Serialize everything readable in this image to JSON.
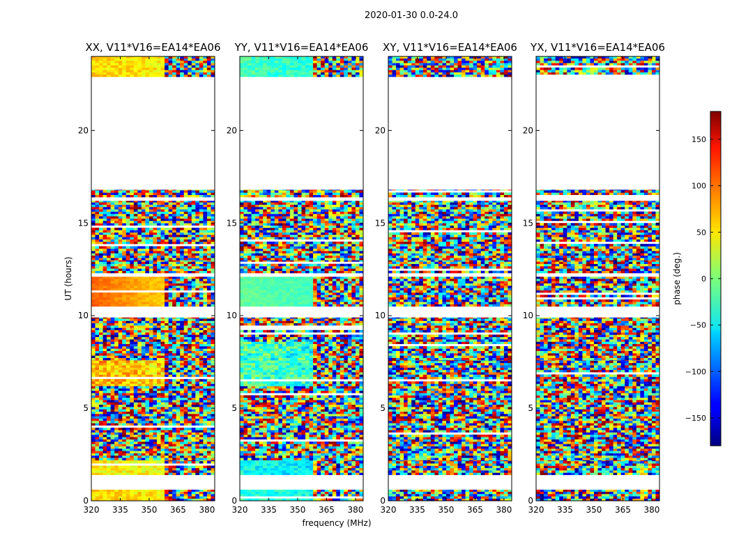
{
  "chart_data": {
    "type": "heatmap",
    "title": "2020-01-30 0.0-24.0",
    "xlabel": "frequency (MHz)",
    "ylabel": "UT (hours)",
    "xlim": [
      320,
      384
    ],
    "ylim": [
      0,
      24
    ],
    "xticks": [
      320,
      335,
      350,
      365,
      380
    ],
    "yticks": [
      0,
      5,
      10,
      15,
      20
    ],
    "panels": [
      {
        "title": "XX, V11*V16=EA14*EA06"
      },
      {
        "title": "YY, V11*V16=EA14*EA06"
      },
      {
        "title": "XY, V11*V16=EA14*EA06"
      },
      {
        "title": "YX, V11*V16=EA14*EA06"
      }
    ],
    "colorbar": {
      "label": "phase (deg.)",
      "colormap": "jet",
      "range": [
        -180,
        180
      ],
      "ticks": [
        150,
        100,
        50,
        0,
        -50,
        -100,
        -150
      ]
    },
    "segments_note": "phase per panel [XX,YY,XY,YX]; null = incoherent (random phase)",
    "segments": [
      {
        "t": [
          0.0,
          0.6
        ],
        "phase": [
          60,
          -30,
          null,
          null
        ],
        "noise": 40,
        "fringe_from_mhz": 357
      },
      {
        "t": [
          1.4,
          2.2
        ],
        "phase": [
          50,
          -40,
          null,
          null
        ],
        "noise": 50,
        "fringe_from_mhz": 357
      },
      {
        "t": [
          2.2,
          6.2
        ],
        "phase": [
          null,
          null,
          null,
          null
        ],
        "noise": 180,
        "fringe_from_mhz": 357
      },
      {
        "t": [
          6.2,
          7.6
        ],
        "phase": [
          70,
          -20,
          null,
          null
        ],
        "noise": 70,
        "fringe_from_mhz": 357
      },
      {
        "t": [
          7.6,
          8.6
        ],
        "phase": [
          null,
          -20,
          null,
          null
        ],
        "noise": 90,
        "fringe_from_mhz": 357
      },
      {
        "t": [
          8.6,
          9.9
        ],
        "phase": [
          null,
          null,
          null,
          null
        ],
        "noise": 180,
        "fringe_from_mhz": 357
      },
      {
        "t": [
          10.5,
          12.1
        ],
        "phase": [
          100,
          -10,
          null,
          null
        ],
        "noise": 20,
        "fringe_from_mhz": 357
      },
      {
        "t": [
          12.3,
          13.0
        ],
        "phase": [
          null,
          null,
          null,
          null
        ],
        "noise": 180,
        "fringe_from_mhz": 357
      },
      {
        "t": [
          13.0,
          16.2
        ],
        "phase": [
          null,
          null,
          null,
          null
        ],
        "noise": 180,
        "fringe_from_mhz": 357
      },
      {
        "t": [
          16.4,
          16.8
        ],
        "phase": [
          null,
          null,
          null,
          null
        ],
        "noise": 180,
        "fringe_from_mhz": 357
      },
      {
        "t": [
          22.9,
          24.0
        ],
        "phase": [
          60,
          -20,
          null,
          null
        ],
        "noise": 40,
        "fringe_from_mhz": 357
      }
    ]
  }
}
